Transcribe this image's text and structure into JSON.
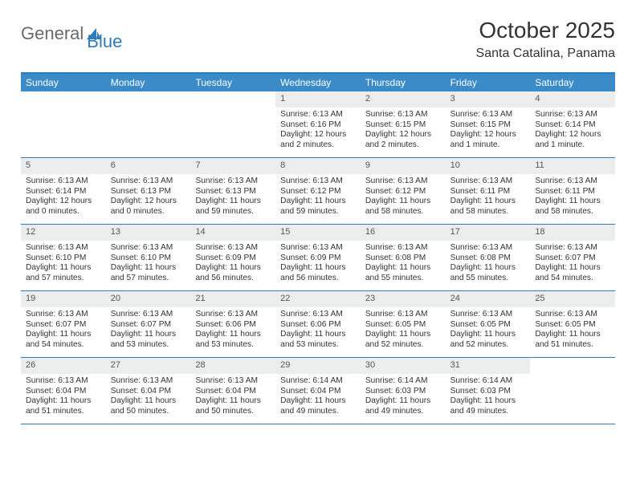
{
  "logo": {
    "text1": "General",
    "text2": "Blue"
  },
  "title": "October 2025",
  "location": "Santa Catalina, Panama",
  "colors": {
    "accent": "#3b8bc9",
    "rule": "#2f7ab8",
    "daynum_bg": "#eceeee",
    "text": "#333333",
    "logo_gray": "#6a6a6a"
  },
  "weekdays": [
    "Sunday",
    "Monday",
    "Tuesday",
    "Wednesday",
    "Thursday",
    "Friday",
    "Saturday"
  ],
  "weeks": [
    [
      null,
      null,
      null,
      {
        "n": "1",
        "sr": "6:13 AM",
        "ss": "6:16 PM",
        "dl": "12 hours and 2 minutes."
      },
      {
        "n": "2",
        "sr": "6:13 AM",
        "ss": "6:15 PM",
        "dl": "12 hours and 2 minutes."
      },
      {
        "n": "3",
        "sr": "6:13 AM",
        "ss": "6:15 PM",
        "dl": "12 hours and 1 minute."
      },
      {
        "n": "4",
        "sr": "6:13 AM",
        "ss": "6:14 PM",
        "dl": "12 hours and 1 minute."
      }
    ],
    [
      {
        "n": "5",
        "sr": "6:13 AM",
        "ss": "6:14 PM",
        "dl": "12 hours and 0 minutes."
      },
      {
        "n": "6",
        "sr": "6:13 AM",
        "ss": "6:13 PM",
        "dl": "12 hours and 0 minutes."
      },
      {
        "n": "7",
        "sr": "6:13 AM",
        "ss": "6:13 PM",
        "dl": "11 hours and 59 minutes."
      },
      {
        "n": "8",
        "sr": "6:13 AM",
        "ss": "6:12 PM",
        "dl": "11 hours and 59 minutes."
      },
      {
        "n": "9",
        "sr": "6:13 AM",
        "ss": "6:12 PM",
        "dl": "11 hours and 58 minutes."
      },
      {
        "n": "10",
        "sr": "6:13 AM",
        "ss": "6:11 PM",
        "dl": "11 hours and 58 minutes."
      },
      {
        "n": "11",
        "sr": "6:13 AM",
        "ss": "6:11 PM",
        "dl": "11 hours and 58 minutes."
      }
    ],
    [
      {
        "n": "12",
        "sr": "6:13 AM",
        "ss": "6:10 PM",
        "dl": "11 hours and 57 minutes."
      },
      {
        "n": "13",
        "sr": "6:13 AM",
        "ss": "6:10 PM",
        "dl": "11 hours and 57 minutes."
      },
      {
        "n": "14",
        "sr": "6:13 AM",
        "ss": "6:09 PM",
        "dl": "11 hours and 56 minutes."
      },
      {
        "n": "15",
        "sr": "6:13 AM",
        "ss": "6:09 PM",
        "dl": "11 hours and 56 minutes."
      },
      {
        "n": "16",
        "sr": "6:13 AM",
        "ss": "6:08 PM",
        "dl": "11 hours and 55 minutes."
      },
      {
        "n": "17",
        "sr": "6:13 AM",
        "ss": "6:08 PM",
        "dl": "11 hours and 55 minutes."
      },
      {
        "n": "18",
        "sr": "6:13 AM",
        "ss": "6:07 PM",
        "dl": "11 hours and 54 minutes."
      }
    ],
    [
      {
        "n": "19",
        "sr": "6:13 AM",
        "ss": "6:07 PM",
        "dl": "11 hours and 54 minutes."
      },
      {
        "n": "20",
        "sr": "6:13 AM",
        "ss": "6:07 PM",
        "dl": "11 hours and 53 minutes."
      },
      {
        "n": "21",
        "sr": "6:13 AM",
        "ss": "6:06 PM",
        "dl": "11 hours and 53 minutes."
      },
      {
        "n": "22",
        "sr": "6:13 AM",
        "ss": "6:06 PM",
        "dl": "11 hours and 53 minutes."
      },
      {
        "n": "23",
        "sr": "6:13 AM",
        "ss": "6:05 PM",
        "dl": "11 hours and 52 minutes."
      },
      {
        "n": "24",
        "sr": "6:13 AM",
        "ss": "6:05 PM",
        "dl": "11 hours and 52 minutes."
      },
      {
        "n": "25",
        "sr": "6:13 AM",
        "ss": "6:05 PM",
        "dl": "11 hours and 51 minutes."
      }
    ],
    [
      {
        "n": "26",
        "sr": "6:13 AM",
        "ss": "6:04 PM",
        "dl": "11 hours and 51 minutes."
      },
      {
        "n": "27",
        "sr": "6:13 AM",
        "ss": "6:04 PM",
        "dl": "11 hours and 50 minutes."
      },
      {
        "n": "28",
        "sr": "6:13 AM",
        "ss": "6:04 PM",
        "dl": "11 hours and 50 minutes."
      },
      {
        "n": "29",
        "sr": "6:14 AM",
        "ss": "6:04 PM",
        "dl": "11 hours and 49 minutes."
      },
      {
        "n": "30",
        "sr": "6:14 AM",
        "ss": "6:03 PM",
        "dl": "11 hours and 49 minutes."
      },
      {
        "n": "31",
        "sr": "6:14 AM",
        "ss": "6:03 PM",
        "dl": "11 hours and 49 minutes."
      },
      null
    ]
  ],
  "labels": {
    "sunrise": "Sunrise:",
    "sunset": "Sunset:",
    "daylight": "Daylight:"
  }
}
